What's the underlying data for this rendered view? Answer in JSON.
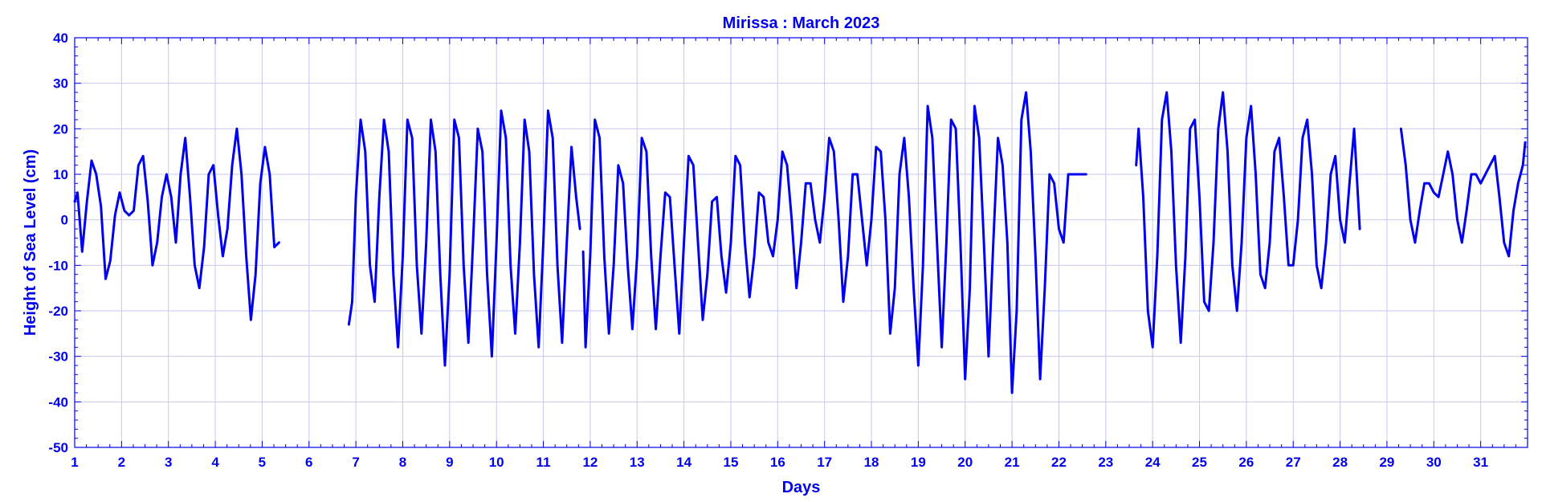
{
  "colors": {
    "accent": "#0000ee",
    "grid": "#c8c8f0",
    "background": "#ffffff"
  },
  "chart_data": {
    "type": "line",
    "title": "Mirissa : March 2023",
    "xlabel": "Days",
    "ylabel": "Height of Sea Level (cm)",
    "xlim": [
      1,
      32
    ],
    "ylim": [
      -50,
      40
    ],
    "x_ticks": [
      1,
      2,
      3,
      4,
      5,
      6,
      7,
      8,
      9,
      10,
      11,
      12,
      13,
      14,
      15,
      16,
      17,
      18,
      19,
      20,
      21,
      22,
      23,
      24,
      25,
      26,
      27,
      28,
      29,
      30,
      31
    ],
    "y_ticks": [
      -50,
      -40,
      -30,
      -20,
      -10,
      0,
      10,
      20,
      30,
      40
    ],
    "grid": true,
    "legend": "none",
    "series": [
      {
        "segments": [
          {
            "x": [
              1.0,
              1.06,
              1.16,
              1.26,
              1.36,
              1.46,
              1.56,
              1.66,
              1.76,
              1.86,
              1.96,
              2.06,
              2.16,
              2.26,
              2.36,
              2.46,
              2.56,
              2.66,
              2.76,
              2.86,
              2.96,
              3.06,
              3.16,
              3.26,
              3.36,
              3.46,
              3.56,
              3.66,
              3.76,
              3.86,
              3.96,
              4.06,
              4.16,
              4.26,
              4.36,
              4.46,
              4.56,
              4.66,
              4.76,
              4.86,
              4.96,
              5.06,
              5.16,
              5.26,
              5.36
            ],
            "y": [
              4,
              6,
              -7,
              4,
              13,
              10,
              3,
              -13,
              -9,
              1,
              6,
              2,
              1,
              2,
              12,
              14,
              4,
              -10,
              -5,
              5,
              10,
              5,
              -5,
              10,
              18,
              5,
              -10,
              -15,
              -6,
              10,
              12,
              1,
              -8,
              -2,
              12,
              20,
              10,
              -8,
              -22,
              -12,
              8,
              16,
              10,
              -6,
              -5
            ]
          },
          {
            "x": [
              6.85,
              6.92,
              7.0,
              7.1,
              7.2,
              7.3,
              7.4,
              7.5,
              7.6,
              7.7,
              7.8,
              7.9,
              8.0,
              8.1,
              8.2,
              8.3,
              8.4,
              8.5,
              8.6,
              8.7,
              8.8,
              8.9,
              9.0,
              9.1,
              9.2,
              9.3,
              9.4,
              9.5,
              9.6,
              9.7,
              9.8,
              9.9,
              10.0,
              10.1,
              10.2,
              10.3,
              10.4,
              10.5,
              10.6,
              10.7,
              10.8,
              10.9,
              11.0,
              11.1,
              11.2,
              11.3,
              11.4,
              11.5,
              11.6,
              11.7,
              11.78
            ],
            "y": [
              -23,
              -18,
              5,
              22,
              15,
              -10,
              -18,
              5,
              22,
              15,
              -12,
              -28,
              -8,
              22,
              18,
              -10,
              -25,
              -5,
              22,
              15,
              -12,
              -32,
              -12,
              22,
              18,
              -10,
              -27,
              -5,
              20,
              15,
              -12,
              -30,
              -5,
              24,
              18,
              -10,
              -25,
              -5,
              22,
              15,
              -12,
              -28,
              -5,
              24,
              18,
              -10,
              -27,
              -5,
              16,
              5,
              -2
            ]
          },
          {
            "x": [
              11.85,
              11.9,
              12.0,
              12.1,
              12.2,
              12.3,
              12.4,
              12.5,
              12.6,
              12.7,
              12.8,
              12.9,
              13.0,
              13.1,
              13.2,
              13.3,
              13.4,
              13.5,
              13.6,
              13.7,
              13.8,
              13.9,
              14.0,
              14.1,
              14.2,
              14.3,
              14.4,
              14.5,
              14.6,
              14.7,
              14.8,
              14.9,
              15.0,
              15.1,
              15.2,
              15.3,
              15.4,
              15.5,
              15.6,
              15.7,
              15.8,
              15.9,
              16.0,
              16.1,
              16.2,
              16.3,
              16.4,
              16.5,
              16.6,
              16.7,
              16.8,
              16.9,
              17.0,
              17.1,
              17.2,
              17.3,
              17.4,
              17.5,
              17.6,
              17.7,
              17.8,
              17.9,
              18.0,
              18.1,
              18.2,
              18.3,
              18.4,
              18.5,
              18.6,
              18.7,
              18.8,
              18.9,
              19.0,
              19.1,
              19.2,
              19.3,
              19.4,
              19.5,
              19.6,
              19.7,
              19.8,
              19.9,
              20.0,
              20.1,
              20.2,
              20.3,
              20.4,
              20.5,
              20.6,
              20.7,
              20.8,
              20.9,
              21.0,
              21.1,
              21.2,
              21.3,
              21.4,
              21.5,
              21.6,
              21.7,
              21.8,
              21.9,
              22.0,
              22.1,
              22.2,
              22.3,
              22.4,
              22.5,
              22.58
            ],
            "y": [
              -7,
              -28,
              -8,
              22,
              18,
              -8,
              -25,
              -10,
              12,
              8,
              -10,
              -24,
              -8,
              18,
              15,
              -8,
              -24,
              -8,
              6,
              5,
              -10,
              -25,
              -5,
              14,
              12,
              -5,
              -22,
              -12,
              4,
              5,
              -8,
              -16,
              -5,
              14,
              12,
              -5,
              -17,
              -8,
              6,
              5,
              -5,
              -8,
              0,
              15,
              12,
              0,
              -15,
              -5,
              8,
              8,
              0,
              -5,
              5,
              18,
              15,
              0,
              -18,
              -8,
              10,
              10,
              0,
              -10,
              0,
              16,
              15,
              0,
              -25,
              -15,
              10,
              18,
              5,
              -15,
              -32,
              -10,
              25,
              18,
              -5,
              -28,
              -5,
              22,
              20,
              -5,
              -35,
              -15,
              25,
              18,
              -5,
              -30,
              -5,
              18,
              12,
              -5,
              -38,
              -20,
              22,
              28,
              15,
              -8,
              -35,
              -15,
              10,
              8,
              -2,
              -5,
              10,
              10,
              10,
              10,
              10
            ]
          },
          {
            "x": [
              23.65,
              23.7,
              23.8,
              23.9,
              24.0,
              24.1,
              24.2,
              24.3,
              24.4,
              24.5,
              24.6,
              24.7,
              24.8,
              24.9,
              25.0,
              25.1,
              25.2,
              25.3,
              25.4,
              25.5,
              25.6,
              25.7,
              25.8,
              25.9,
              26.0,
              26.1,
              26.2,
              26.3,
              26.4,
              26.5,
              26.6,
              26.7,
              26.8,
              26.9,
              27.0,
              27.1,
              27.2,
              27.3,
              27.4,
              27.5,
              27.6,
              27.7,
              27.8,
              27.9,
              28.0,
              28.1,
              28.2,
              28.3,
              28.42
            ],
            "y": [
              12,
              20,
              5,
              -20,
              -28,
              -8,
              22,
              28,
              15,
              -10,
              -27,
              -8,
              20,
              22,
              5,
              -18,
              -20,
              -5,
              20,
              28,
              15,
              -10,
              -20,
              -5,
              18,
              25,
              10,
              -12,
              -15,
              -5,
              15,
              18,
              5,
              -10,
              -10,
              0,
              18,
              22,
              10,
              -10,
              -15,
              -5,
              10,
              14,
              0,
              -5,
              8,
              20,
              -2
            ]
          },
          {
            "x": [
              29.3,
              29.4,
              29.5,
              29.6,
              29.7,
              29.8,
              29.9,
              30.0,
              30.1,
              30.2,
              30.3,
              30.4,
              30.5,
              30.6,
              30.7,
              30.8,
              30.9,
              31.0,
              31.1,
              31.2,
              31.3,
              31.4,
              31.5,
              31.6,
              31.7,
              31.8,
              31.9,
              31.95
            ],
            "y": [
              20,
              12,
              0,
              -5,
              2,
              8,
              8,
              6,
              5,
              10,
              15,
              10,
              0,
              -5,
              2,
              10,
              10,
              8,
              10,
              12,
              14,
              5,
              -5,
              -8,
              2,
              8,
              12,
              17
            ]
          }
        ]
      }
    ]
  }
}
